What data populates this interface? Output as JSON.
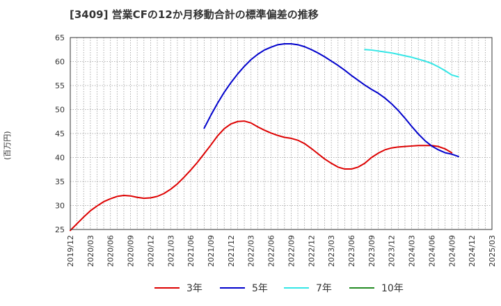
{
  "title": "[3409]  営業CFの12か月移動合計の標準偏差の推移",
  "ylabel_unit": "(百万円)",
  "colors": {
    "s3": "#dd0000",
    "s5": "#0000cc",
    "s7": "#33e6e6",
    "s10": "#228b22"
  },
  "chart_data": {
    "type": "line",
    "xlabel": "",
    "ylabel": "(百万円)",
    "ylim": [
      25,
      65
    ],
    "yticks": [
      25,
      30,
      35,
      40,
      45,
      50,
      55,
      60,
      65
    ],
    "x_tick_labels": [
      "2019/12",
      "2020/03",
      "2020/06",
      "2020/09",
      "2020/12",
      "2021/03",
      "2021/06",
      "2021/09",
      "2021/12",
      "2022/03",
      "2022/06",
      "2022/09",
      "2022/12",
      "2023/03",
      "2023/06",
      "2023/09",
      "2023/12",
      "2024/03",
      "2024/06",
      "2024/09",
      "2024/12",
      "2025/03"
    ],
    "grid": true,
    "legend_position": "bottom",
    "series": [
      {
        "name": "3年",
        "color": "#dd0000",
        "points": [
          [
            "2019/12",
            24.8
          ],
          [
            "2020/01",
            26.2
          ],
          [
            "2020/02",
            27.6
          ],
          [
            "2020/03",
            28.9
          ],
          [
            "2020/04",
            29.9
          ],
          [
            "2020/05",
            30.8
          ],
          [
            "2020/06",
            31.4
          ],
          [
            "2020/07",
            31.9
          ],
          [
            "2020/08",
            32.1
          ],
          [
            "2020/09",
            32.0
          ],
          [
            "2020/10",
            31.7
          ],
          [
            "2020/11",
            31.5
          ],
          [
            "2020/12",
            31.6
          ],
          [
            "2021/01",
            31.9
          ],
          [
            "2021/02",
            32.5
          ],
          [
            "2021/03",
            33.4
          ],
          [
            "2021/04",
            34.5
          ],
          [
            "2021/05",
            35.9
          ],
          [
            "2021/06",
            37.4
          ],
          [
            "2021/07",
            39.0
          ],
          [
            "2021/08",
            40.8
          ],
          [
            "2021/09",
            42.6
          ],
          [
            "2021/10",
            44.5
          ],
          [
            "2021/11",
            46.0
          ],
          [
            "2021/12",
            47.0
          ],
          [
            "2022/01",
            47.5
          ],
          [
            "2022/02",
            47.6
          ],
          [
            "2022/03",
            47.2
          ],
          [
            "2022/04",
            46.4
          ],
          [
            "2022/05",
            45.7
          ],
          [
            "2022/06",
            45.1
          ],
          [
            "2022/07",
            44.6
          ],
          [
            "2022/08",
            44.2
          ],
          [
            "2022/09",
            44.0
          ],
          [
            "2022/10",
            43.6
          ],
          [
            "2022/11",
            42.9
          ],
          [
            "2022/12",
            41.9
          ],
          [
            "2023/01",
            40.8
          ],
          [
            "2023/02",
            39.7
          ],
          [
            "2023/03",
            38.8
          ],
          [
            "2023/04",
            38.0
          ],
          [
            "2023/05",
            37.6
          ],
          [
            "2023/06",
            37.6
          ],
          [
            "2023/07",
            38.0
          ],
          [
            "2023/08",
            38.8
          ],
          [
            "2023/09",
            40.0
          ],
          [
            "2023/10",
            40.9
          ],
          [
            "2023/11",
            41.6
          ],
          [
            "2023/12",
            42.0
          ],
          [
            "2024/01",
            42.2
          ],
          [
            "2024/02",
            42.3
          ],
          [
            "2024/03",
            42.4
          ],
          [
            "2024/04",
            42.5
          ],
          [
            "2024/05",
            42.5
          ],
          [
            "2024/06",
            42.5
          ],
          [
            "2024/07",
            42.3
          ],
          [
            "2024/08",
            41.8
          ],
          [
            "2024/09",
            41.0
          ]
        ]
      },
      {
        "name": "5年",
        "color": "#0000cc",
        "points": [
          [
            "2021/08",
            46.1
          ],
          [
            "2021/09",
            48.8
          ],
          [
            "2021/10",
            51.3
          ],
          [
            "2021/11",
            53.6
          ],
          [
            "2021/12",
            55.6
          ],
          [
            "2022/01",
            57.4
          ],
          [
            "2022/02",
            59.0
          ],
          [
            "2022/03",
            60.4
          ],
          [
            "2022/04",
            61.5
          ],
          [
            "2022/05",
            62.4
          ],
          [
            "2022/06",
            63.0
          ],
          [
            "2022/07",
            63.5
          ],
          [
            "2022/08",
            63.7
          ],
          [
            "2022/09",
            63.7
          ],
          [
            "2022/10",
            63.5
          ],
          [
            "2022/11",
            63.1
          ],
          [
            "2022/12",
            62.5
          ],
          [
            "2023/01",
            61.8
          ],
          [
            "2023/02",
            61.0
          ],
          [
            "2023/03",
            60.1
          ],
          [
            "2023/04",
            59.2
          ],
          [
            "2023/05",
            58.2
          ],
          [
            "2023/06",
            57.1
          ],
          [
            "2023/07",
            56.1
          ],
          [
            "2023/08",
            55.1
          ],
          [
            "2023/09",
            54.2
          ],
          [
            "2023/10",
            53.4
          ],
          [
            "2023/11",
            52.4
          ],
          [
            "2023/12",
            51.2
          ],
          [
            "2024/01",
            49.8
          ],
          [
            "2024/02",
            48.2
          ],
          [
            "2024/03",
            46.5
          ],
          [
            "2024/04",
            44.9
          ],
          [
            "2024/05",
            43.5
          ],
          [
            "2024/06",
            42.4
          ],
          [
            "2024/07",
            41.6
          ],
          [
            "2024/08",
            41.0
          ],
          [
            "2024/09",
            40.7
          ],
          [
            "2024/10",
            40.2
          ]
        ]
      },
      {
        "name": "7年",
        "color": "#33e6e6",
        "points": [
          [
            "2023/08",
            62.5
          ],
          [
            "2023/09",
            62.4
          ],
          [
            "2023/10",
            62.2
          ],
          [
            "2023/11",
            62.0
          ],
          [
            "2023/12",
            61.8
          ],
          [
            "2024/01",
            61.5
          ],
          [
            "2024/02",
            61.2
          ],
          [
            "2024/03",
            60.9
          ],
          [
            "2024/04",
            60.5
          ],
          [
            "2024/05",
            60.1
          ],
          [
            "2024/06",
            59.6
          ],
          [
            "2024/07",
            58.9
          ],
          [
            "2024/08",
            58.1
          ],
          [
            "2024/09",
            57.2
          ],
          [
            "2024/10",
            56.8
          ]
        ]
      },
      {
        "name": "10年",
        "color": "#228b22",
        "points": []
      }
    ]
  }
}
